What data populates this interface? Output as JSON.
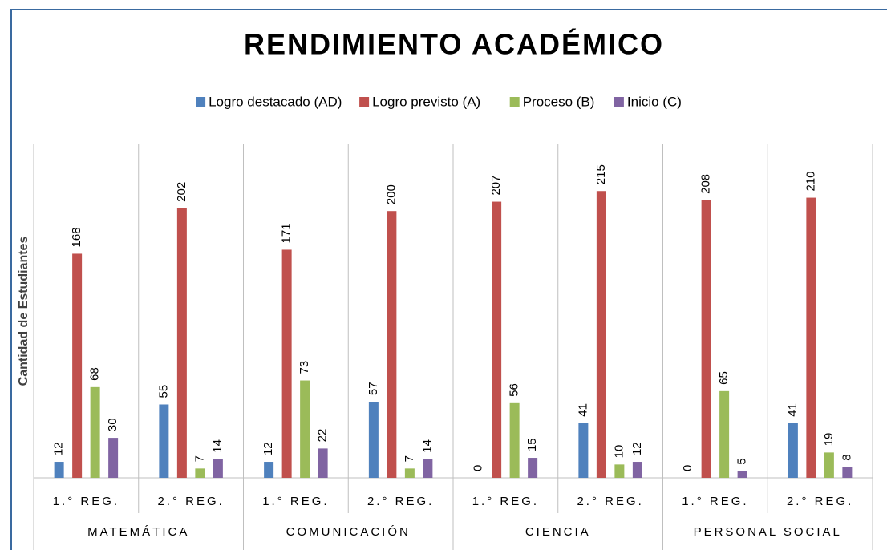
{
  "chart_data": {
    "type": "bar",
    "title": "RENDIMIENTO ACADÉMICO",
    "y_label": "Cantidad de Estudiantes",
    "categories": [
      "1.° REG.",
      "2.° REG.",
      "1.° REG.",
      "2.° REG.",
      "1.° REG.",
      "2.° REG.",
      "1.° REG.",
      "2.° REG."
    ],
    "groups": [
      "MATEMÁTICA",
      "COMUNICACIÓN",
      "CIENCIA",
      "PERSONAL SOCIAL"
    ],
    "series": [
      {
        "name": "Logro destacado (AD)",
        "color": "#4f81bd",
        "values": [
          12,
          55,
          12,
          57,
          0,
          41,
          0,
          41
        ]
      },
      {
        "name": "Logro previsto (A)",
        "color": "#c0504d",
        "values": [
          168,
          202,
          171,
          200,
          207,
          215,
          208,
          210
        ]
      },
      {
        "name": "Proceso (B)",
        "color": "#9bbb59",
        "values": [
          68,
          7,
          73,
          7,
          56,
          10,
          65,
          19
        ]
      },
      {
        "name": "Inicio (C)",
        "color": "#8064a2",
        "values": [
          30,
          14,
          22,
          14,
          15,
          12,
          5,
          8
        ]
      }
    ],
    "ylim": [
      0,
      250
    ],
    "legend": "top"
  }
}
